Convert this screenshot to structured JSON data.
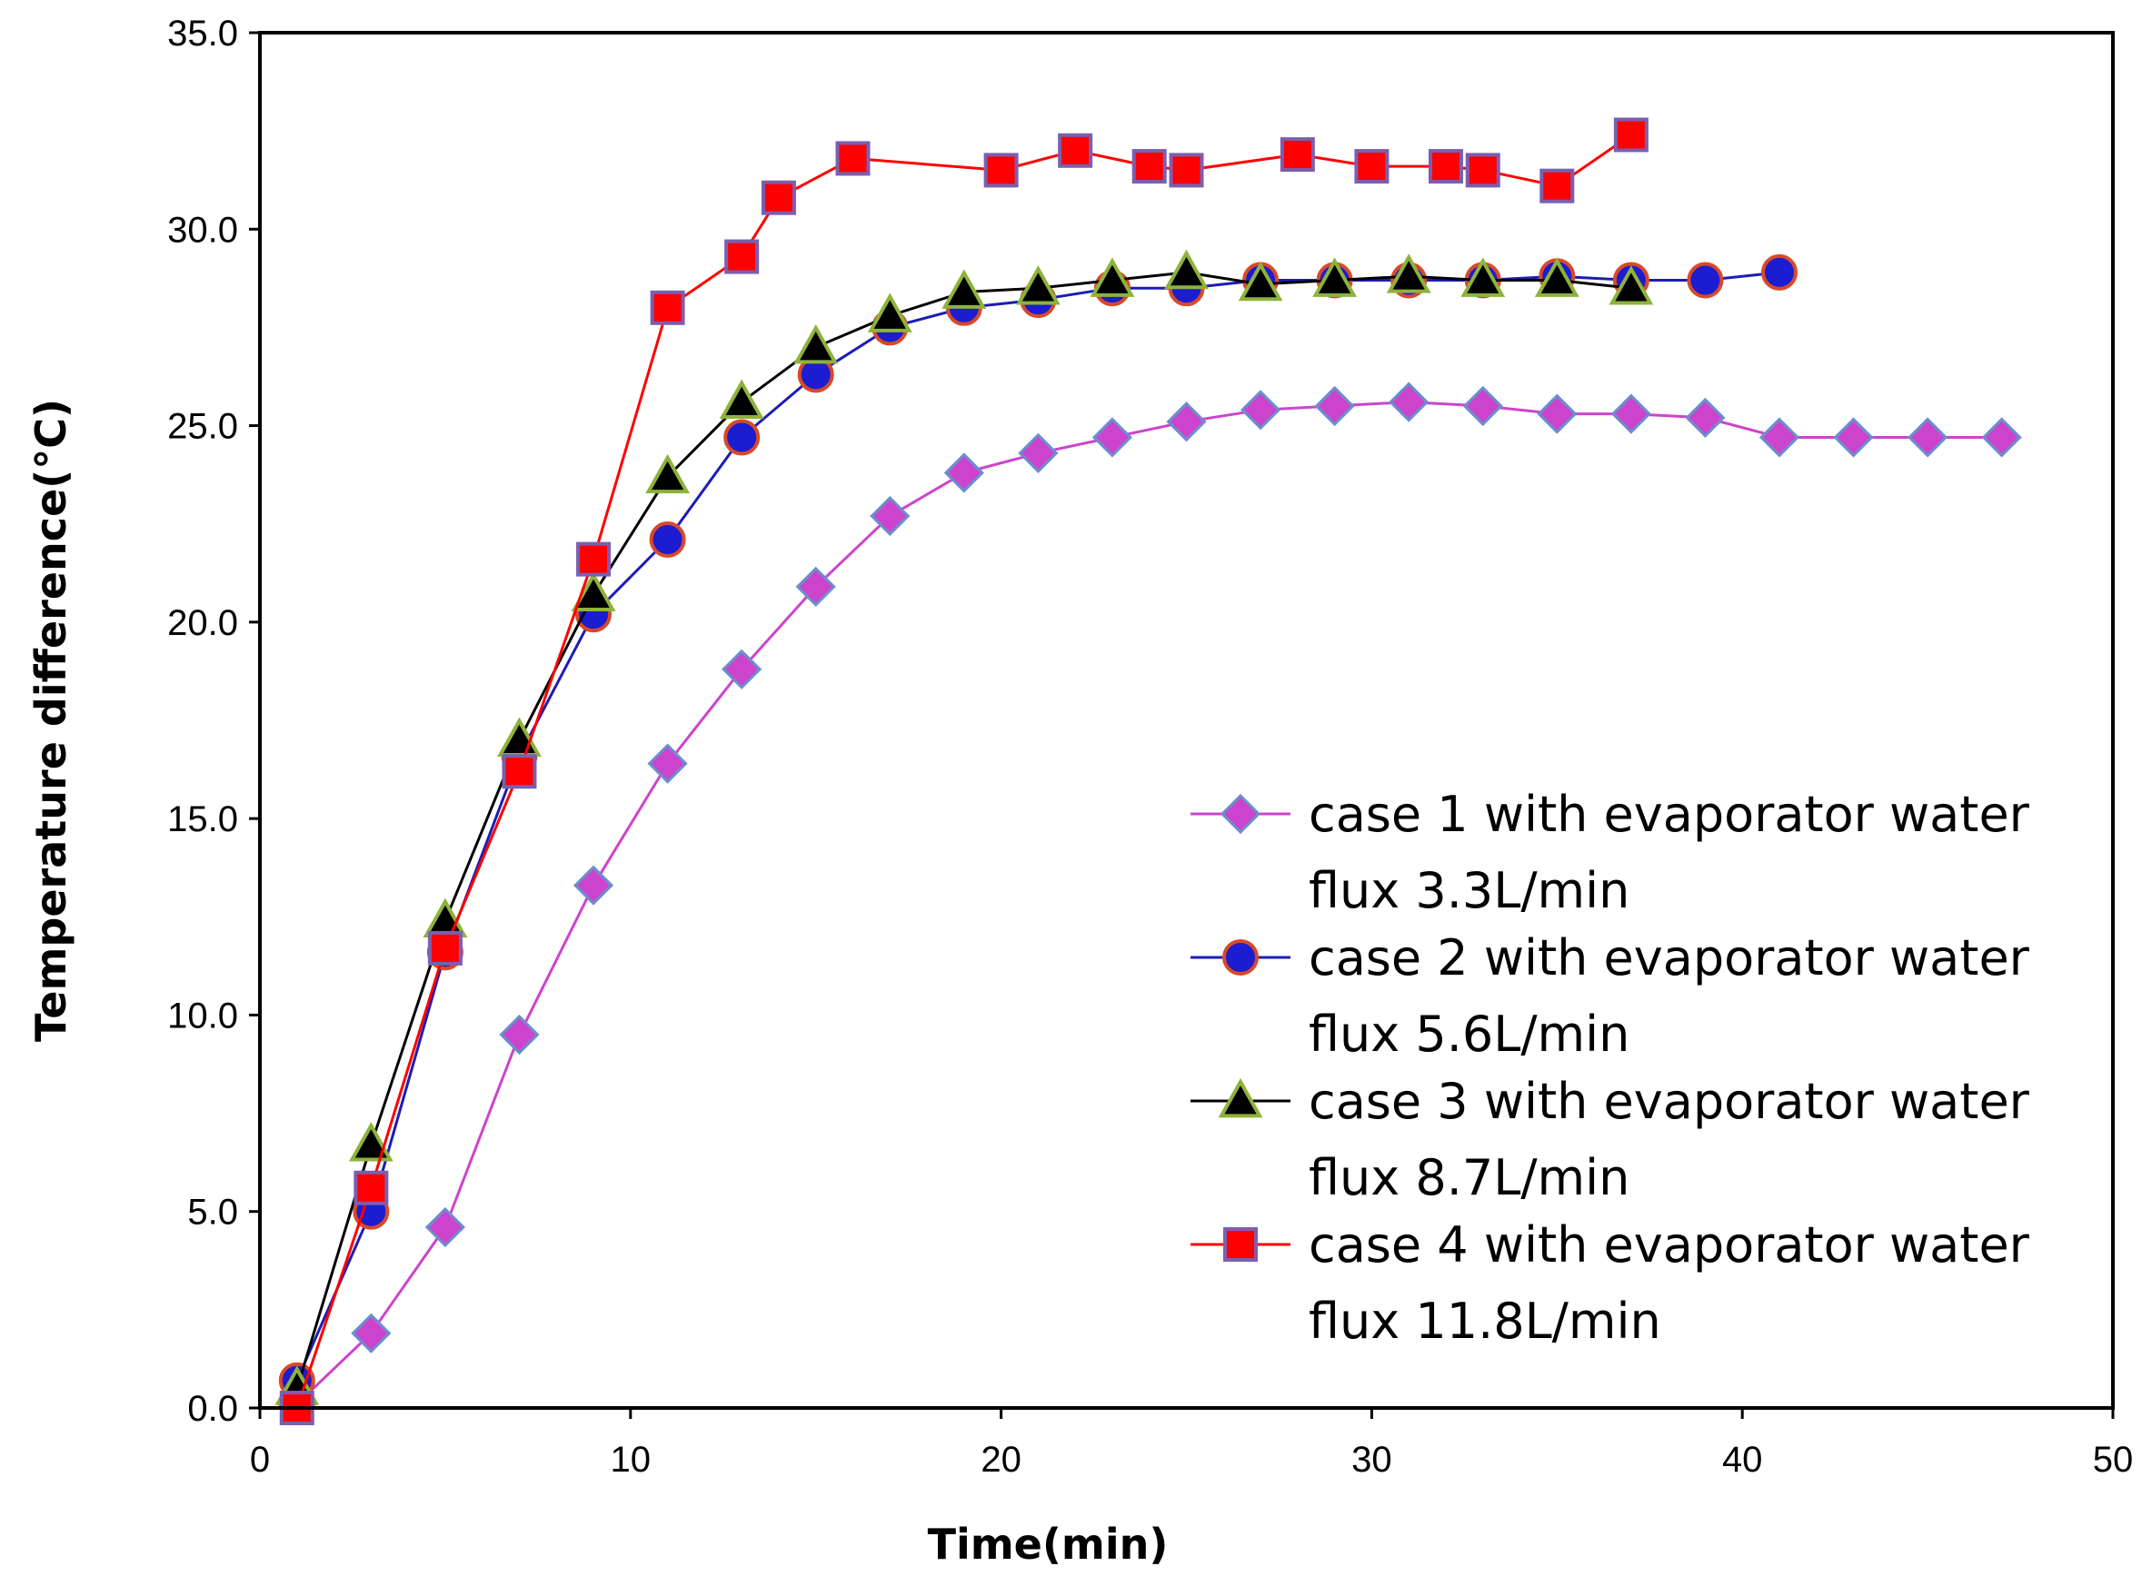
{
  "chart_data": {
    "type": "line",
    "title": "",
    "xlabel": "Time(min)",
    "ylabel": "Temperature difference(°C)",
    "xlim": [
      0,
      50
    ],
    "ylim": [
      0,
      35
    ],
    "x_ticks": [
      "0",
      "10",
      "20",
      "30",
      "40",
      "50"
    ],
    "y_ticks": [
      "0.0",
      "5.0",
      "10.0",
      "15.0",
      "20.0",
      "25.0",
      "30.0",
      "35.0"
    ],
    "legend_position": "right",
    "series": [
      {
        "name": "case 1 with evaporator water flux 3.3L/min",
        "label_line1": "case 1 with evaporator water",
        "label_line2": "flux 3.3L/min",
        "marker": "diamond",
        "line_color": "#CC44CC",
        "marker_fill": "#CC44CC",
        "marker_stroke": "#6A8FCF",
        "x": [
          1,
          3,
          5,
          7,
          9,
          11,
          13,
          15,
          17,
          19,
          21,
          23,
          25,
          27,
          29,
          31,
          33,
          35,
          37,
          39,
          41,
          43,
          45,
          47
        ],
        "y": [
          0.1,
          1.9,
          4.6,
          9.5,
          13.3,
          16.4,
          18.8,
          20.9,
          22.7,
          23.8,
          24.3,
          24.7,
          25.1,
          25.4,
          25.5,
          25.6,
          25.5,
          25.3,
          25.3,
          25.2,
          24.7,
          24.7,
          24.7,
          24.7
        ]
      },
      {
        "name": "case 2 with evaporator water flux 5.6L/min",
        "label_line1": "case 2 with evaporator water",
        "label_line2": "flux 5.6L/min",
        "marker": "circle",
        "line_color": "#1C1CB8",
        "marker_fill": "#1C1CD0",
        "marker_stroke": "#D84A28",
        "x": [
          1,
          3,
          5,
          7,
          9,
          11,
          13,
          15,
          17,
          19,
          21,
          23,
          25,
          27,
          29,
          31,
          33,
          35,
          37,
          39,
          41
        ],
        "y": [
          0.7,
          5.0,
          11.6,
          16.6,
          20.2,
          22.1,
          24.7,
          26.3,
          27.5,
          28.0,
          28.2,
          28.5,
          28.5,
          28.7,
          28.7,
          28.7,
          28.7,
          28.8,
          28.7,
          28.7,
          28.9
        ]
      },
      {
        "name": "case 3 with evaporator water flux 8.7L/min",
        "label_line1": "case 3 with evaporator water",
        "label_line2": "flux 8.7L/min",
        "marker": "triangle",
        "line_color": "#000000",
        "marker_fill": "#000000",
        "marker_stroke": "#8DB33A",
        "x": [
          1,
          3,
          5,
          7,
          9,
          11,
          13,
          15,
          17,
          19,
          21,
          23,
          25,
          27,
          29,
          31,
          33,
          35,
          37
        ],
        "y": [
          0.5,
          6.7,
          12.4,
          17.0,
          20.7,
          23.7,
          25.6,
          27.0,
          27.8,
          28.4,
          28.5,
          28.7,
          28.9,
          28.6,
          28.7,
          28.8,
          28.7,
          28.7,
          28.5
        ]
      },
      {
        "name": "case 4 with evaporator water flux 11.8L/min",
        "label_line1": "case 4 with evaporator water",
        "label_line2": "flux 11.8L/min",
        "marker": "square",
        "line_color": "#FF0000",
        "marker_fill": "#FF0000",
        "marker_stroke": "#7A5FB0",
        "x": [
          1,
          3,
          5,
          7,
          9,
          11,
          13,
          14,
          16,
          20,
          22,
          24,
          25,
          28,
          30,
          32,
          33,
          35,
          37
        ],
        "y": [
          0.0,
          5.6,
          11.7,
          16.2,
          21.6,
          28.0,
          29.3,
          30.8,
          31.8,
          31.5,
          32.0,
          31.6,
          31.5,
          31.9,
          31.6,
          31.6,
          31.5,
          31.1,
          32.4
        ]
      }
    ]
  }
}
